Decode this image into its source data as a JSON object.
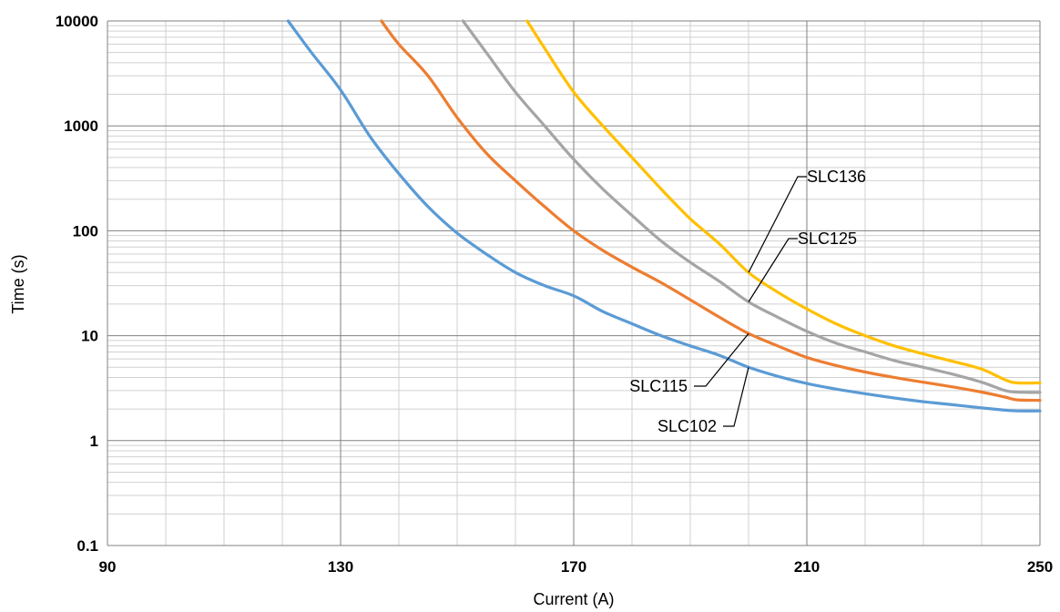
{
  "chart_data": {
    "type": "line",
    "title": "",
    "xlabel": "Current (A)",
    "ylabel": "Time (s)",
    "x_scale": "linear",
    "y_scale": "log",
    "xlim": [
      90,
      250
    ],
    "ylim": [
      0.1,
      10000
    ],
    "x_ticks": [
      "90",
      "130",
      "170",
      "210",
      "250"
    ],
    "y_ticks": [
      "0.1",
      "1",
      "10",
      "100",
      "1000",
      "10000"
    ],
    "grid": true,
    "legend": "none",
    "colors": {
      "SLC102": "#5b9bd5",
      "SLC115": "#ed7d31",
      "SLC125": "#a5a5a5",
      "SLC136": "#ffc000",
      "grid_major": "#808080",
      "grid_minor": "#d0d0d0",
      "leader": "#000000"
    },
    "series": [
      {
        "name": "SLC102",
        "points": [
          [
            121,
            10000
          ],
          [
            125,
            5000
          ],
          [
            130,
            2200
          ],
          [
            135,
            800
          ],
          [
            140,
            350
          ],
          [
            145,
            170
          ],
          [
            150,
            95
          ],
          [
            155,
            60
          ],
          [
            160,
            40
          ],
          [
            165,
            30
          ],
          [
            170,
            24
          ],
          [
            175,
            17
          ],
          [
            180,
            13
          ],
          [
            185,
            10
          ],
          [
            190,
            8
          ],
          [
            195,
            6.5
          ],
          [
            200,
            5
          ],
          [
            205,
            4.1
          ],
          [
            210,
            3.5
          ],
          [
            215,
            3.1
          ],
          [
            220,
            2.8
          ],
          [
            225,
            2.55
          ],
          [
            230,
            2.35
          ],
          [
            235,
            2.2
          ],
          [
            240,
            2.05
          ],
          [
            244,
            1.95
          ],
          [
            246,
            1.92
          ],
          [
            250,
            1.92
          ]
        ]
      },
      {
        "name": "SLC115",
        "points": [
          [
            137,
            10000
          ],
          [
            140,
            6000
          ],
          [
            145,
            3000
          ],
          [
            150,
            1200
          ],
          [
            155,
            550
          ],
          [
            160,
            300
          ],
          [
            165,
            170
          ],
          [
            170,
            100
          ],
          [
            175,
            65
          ],
          [
            180,
            45
          ],
          [
            185,
            32
          ],
          [
            190,
            22
          ],
          [
            195,
            15
          ],
          [
            200,
            10.5
          ],
          [
            205,
            8
          ],
          [
            210,
            6.2
          ],
          [
            215,
            5.2
          ],
          [
            220,
            4.5
          ],
          [
            225,
            4
          ],
          [
            230,
            3.6
          ],
          [
            235,
            3.25
          ],
          [
            240,
            2.9
          ],
          [
            244,
            2.6
          ],
          [
            246,
            2.45
          ],
          [
            250,
            2.42
          ]
        ]
      },
      {
        "name": "SLC125",
        "points": [
          [
            151,
            10000
          ],
          [
            155,
            5000
          ],
          [
            160,
            2100
          ],
          [
            165,
            1000
          ],
          [
            170,
            480
          ],
          [
            175,
            250
          ],
          [
            180,
            140
          ],
          [
            185,
            80
          ],
          [
            190,
            50
          ],
          [
            195,
            33
          ],
          [
            200,
            21
          ],
          [
            205,
            15
          ],
          [
            210,
            11
          ],
          [
            215,
            8.5
          ],
          [
            220,
            7
          ],
          [
            225,
            5.8
          ],
          [
            230,
            5
          ],
          [
            235,
            4.3
          ],
          [
            240,
            3.6
          ],
          [
            244,
            3
          ],
          [
            246,
            2.9
          ],
          [
            250,
            2.88
          ]
        ]
      },
      {
        "name": "SLC136",
        "points": [
          [
            162,
            10000
          ],
          [
            165,
            5500
          ],
          [
            170,
            2100
          ],
          [
            175,
            1000
          ],
          [
            180,
            500
          ],
          [
            185,
            250
          ],
          [
            190,
            130
          ],
          [
            195,
            75
          ],
          [
            200,
            40
          ],
          [
            205,
            26
          ],
          [
            210,
            18
          ],
          [
            215,
            13
          ],
          [
            220,
            10
          ],
          [
            225,
            8
          ],
          [
            230,
            6.7
          ],
          [
            235,
            5.7
          ],
          [
            240,
            4.8
          ],
          [
            244,
            3.8
          ],
          [
            246,
            3.55
          ],
          [
            250,
            3.55
          ]
        ]
      }
    ],
    "annotations": [
      {
        "text": "SLC136",
        "series": "SLC136",
        "x": 200,
        "y": 40
      },
      {
        "text": "SLC125",
        "series": "SLC125",
        "x": 200,
        "y": 21
      },
      {
        "text": "SLC115",
        "series": "SLC115",
        "x": 200,
        "y": 10.5
      },
      {
        "text": "SLC102",
        "series": "SLC102",
        "x": 200,
        "y": 5
      }
    ]
  }
}
